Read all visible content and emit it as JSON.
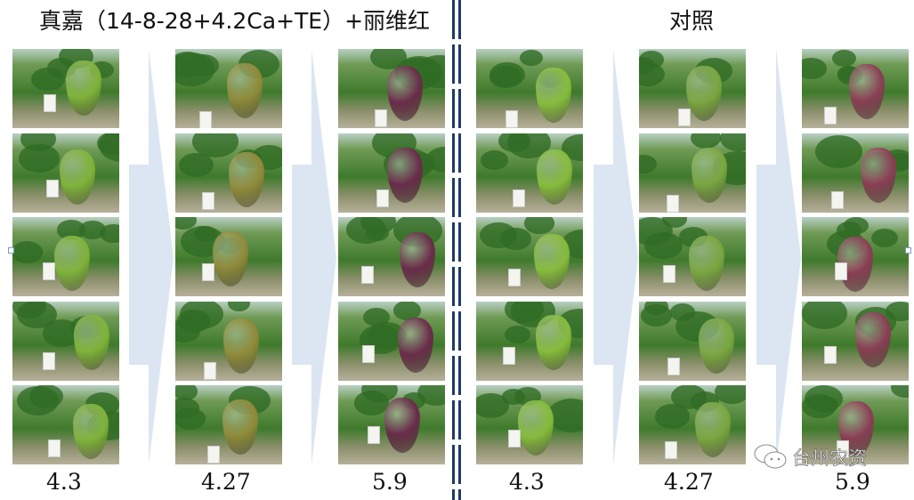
{
  "titles": {
    "treatment": "真嘉（14-8-28+4.2Ca+TE）+丽维红",
    "control": "对照"
  },
  "dates": [
    "4.3",
    "4.27",
    "5.9",
    "4.3",
    "4.27",
    "5.9"
  ],
  "watermark": "台州农资",
  "colors": {
    "divider": "#1f3a68",
    "arrow": "#dbe6f2",
    "cluster_by_column": [
      "#7fb23a",
      "#8f8a3a",
      "#6a2c4a",
      "#86bb3c",
      "#7aa640",
      "#8a3e55"
    ]
  }
}
